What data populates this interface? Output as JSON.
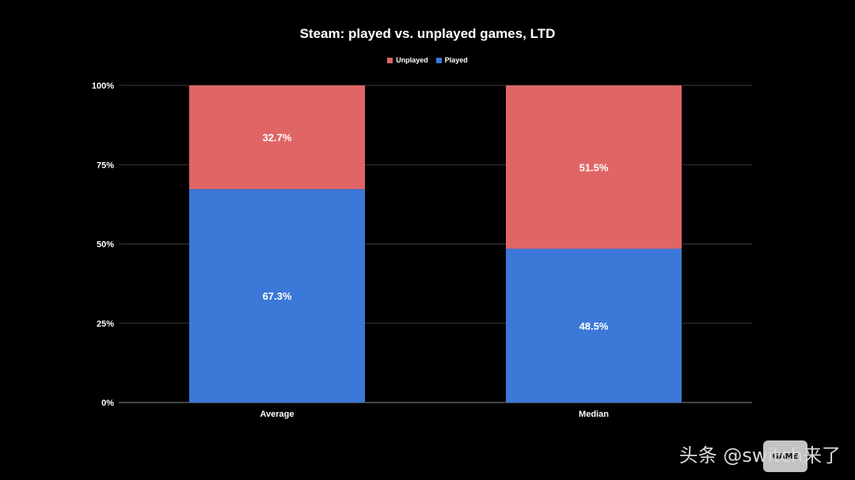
{
  "chart_data": {
    "type": "bar",
    "stacked": true,
    "percent_stacked": true,
    "title": "Steam: played vs. unplayed games, LTD",
    "categories": [
      "Average",
      "Median"
    ],
    "series": [
      {
        "name": "Played",
        "values": [
          67.3,
          48.5
        ],
        "labels": [
          "67.3%",
          "48.5%"
        ],
        "color": "#3c78d8"
      },
      {
        "name": "Unplayed",
        "values": [
          32.7,
          51.5
        ],
        "labels": [
          "32.7%",
          "51.5%"
        ],
        "color": "#e06666"
      }
    ],
    "legend_order": [
      "Unplayed",
      "Played"
    ],
    "legend_position": "top",
    "ylim": [
      0,
      100
    ],
    "yticks": [
      "0%",
      "25%",
      "50%",
      "75%",
      "100%"
    ],
    "grid": true,
    "background": "#000000"
  },
  "watermark": {
    "text": "头条 @switch来了",
    "logo_text": "GAME"
  }
}
